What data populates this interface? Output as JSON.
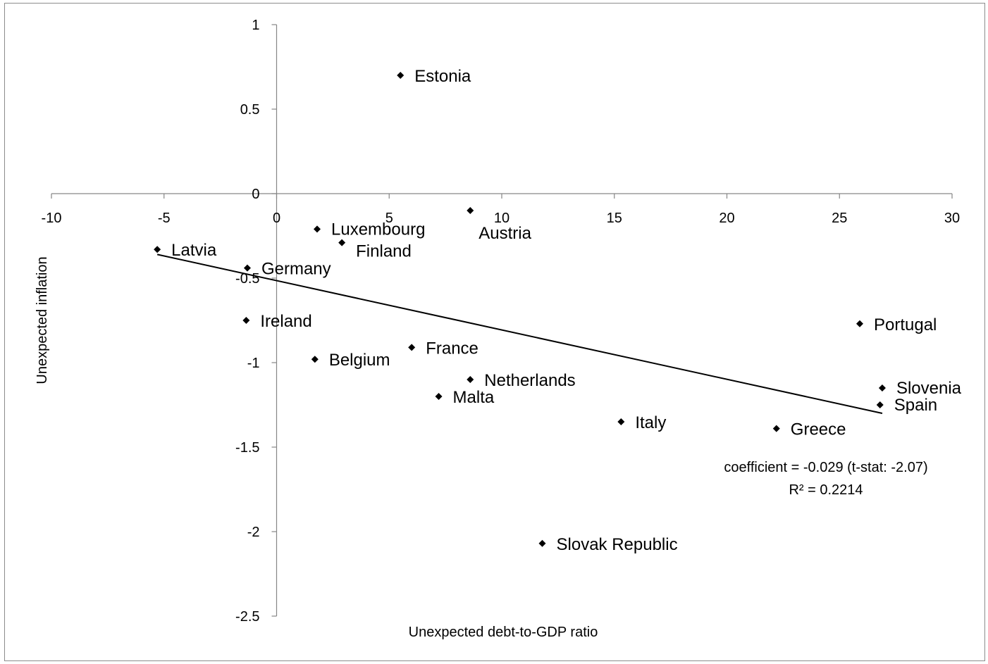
{
  "chart_data": {
    "type": "scatter",
    "title": "",
    "xlabel": "Unexpected debt-to-GDP ratio",
    "ylabel": "Unexpected inflation",
    "xlim": [
      -10,
      30
    ],
    "ylim": [
      -2.5,
      1
    ],
    "x_ticks": [
      "-10",
      "-5",
      "0",
      "5",
      "10",
      "15",
      "20",
      "25",
      "30"
    ],
    "y_ticks": [
      "1",
      "0.5",
      "0",
      "-0.5",
      "-1",
      "-1.5",
      "-2",
      "-2.5"
    ],
    "grid": false,
    "points": [
      {
        "label": "Estonia",
        "x": 5.5,
        "y": 0.7
      },
      {
        "label": "Austria",
        "x": 8.6,
        "y": -0.1
      },
      {
        "label": "Luxembourg",
        "x": 1.8,
        "y": -0.21
      },
      {
        "label": "Finland",
        "x": 2.9,
        "y": -0.29
      },
      {
        "label": "Latvia",
        "x": -5.3,
        "y": -0.33
      },
      {
        "label": "Germany",
        "x": -1.3,
        "y": -0.44
      },
      {
        "label": "Ireland",
        "x": -1.35,
        "y": -0.75
      },
      {
        "label": "Portugal",
        "x": 25.9,
        "y": -0.77
      },
      {
        "label": "France",
        "x": 6.0,
        "y": -0.91
      },
      {
        "label": "Belgium",
        "x": 1.7,
        "y": -0.98
      },
      {
        "label": "Netherlands",
        "x": 8.6,
        "y": -1.1
      },
      {
        "label": "Malta",
        "x": 7.2,
        "y": -1.2
      },
      {
        "label": "Slovenia",
        "x": 26.9,
        "y": -1.15
      },
      {
        "label": "Spain",
        "x": 26.8,
        "y": -1.25
      },
      {
        "label": "Italy",
        "x": 15.3,
        "y": -1.35
      },
      {
        "label": "Greece",
        "x": 22.2,
        "y": -1.39
      },
      {
        "label": "Slovak Republic",
        "x": 11.8,
        "y": -2.07
      }
    ],
    "trendline": {
      "x": [
        -5.3,
        26.9
      ],
      "y": [
        -0.36,
        -1.3
      ]
    },
    "annotations": [
      "coefficient = -0.029 (t-stat: -2.07)",
      "R² = 0.2214"
    ]
  }
}
